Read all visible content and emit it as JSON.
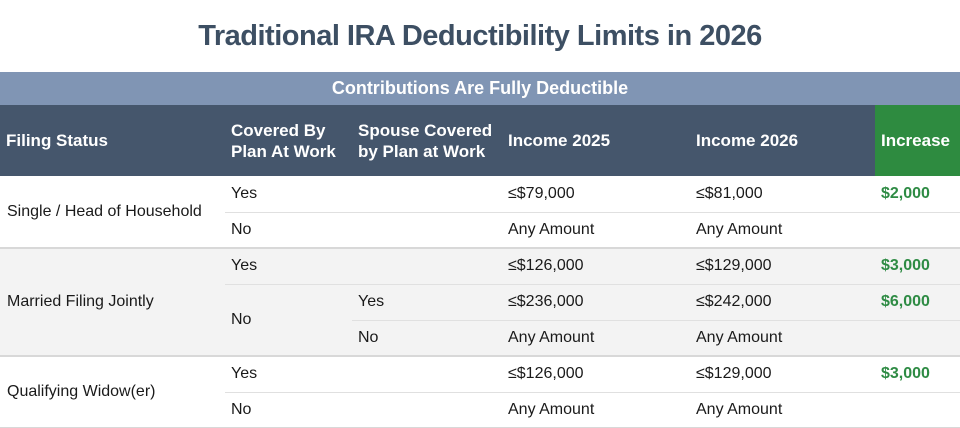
{
  "chart_data": {
    "type": "table",
    "title": "Traditional IRA Deductibility Limits in 2026",
    "subtitle": "Contributions Are Fully Deductible",
    "columns": [
      "Filing Status",
      "Covered By Plan At Work",
      "Spouse Covered by Plan at Work",
      "Income 2025",
      "Income 2026",
      "Increase"
    ],
    "rows": [
      [
        "Single / Head of Household",
        "Yes",
        "",
        "≤$79,000",
        "≤$81,000",
        "$2,000"
      ],
      [
        "Single / Head of Household",
        "No",
        "",
        "Any Amount",
        "Any Amount",
        ""
      ],
      [
        "Married Filing Jointly",
        "Yes",
        "",
        "≤$126,000",
        "≤$129,000",
        "$3,000"
      ],
      [
        "Married Filing Jointly",
        "No",
        "Yes",
        "≤$236,000",
        "≤$242,000",
        "$6,000"
      ],
      [
        "Married Filing Jointly",
        "No",
        "No",
        "Any Amount",
        "Any Amount",
        ""
      ],
      [
        "Qualifying Widow(er)",
        "Yes",
        "",
        "≤$126,000",
        "≤$129,000",
        "$3,000"
      ],
      [
        "Qualifying Widow(er)",
        "No",
        "",
        "Any Amount",
        "Any Amount",
        ""
      ]
    ],
    "layout": {
      "merged_filing_status_sections": [
        2,
        3,
        2
      ],
      "grid": "horizontal separators only",
      "section_shading": [
        "white",
        "light-gray",
        "white"
      ]
    }
  },
  "colors": {
    "banner_bg": "#8095B4",
    "header_bg": "#45566C",
    "increase_header_bg": "#2E8B40",
    "increase_value": "#2E8B44",
    "title_text": "#3D4F63",
    "body_text": "#1A1A1A",
    "row_sep": "#E0E0E0",
    "section_sep": "#D8D8D8",
    "section_alt_bg": "#F3F3F3"
  }
}
